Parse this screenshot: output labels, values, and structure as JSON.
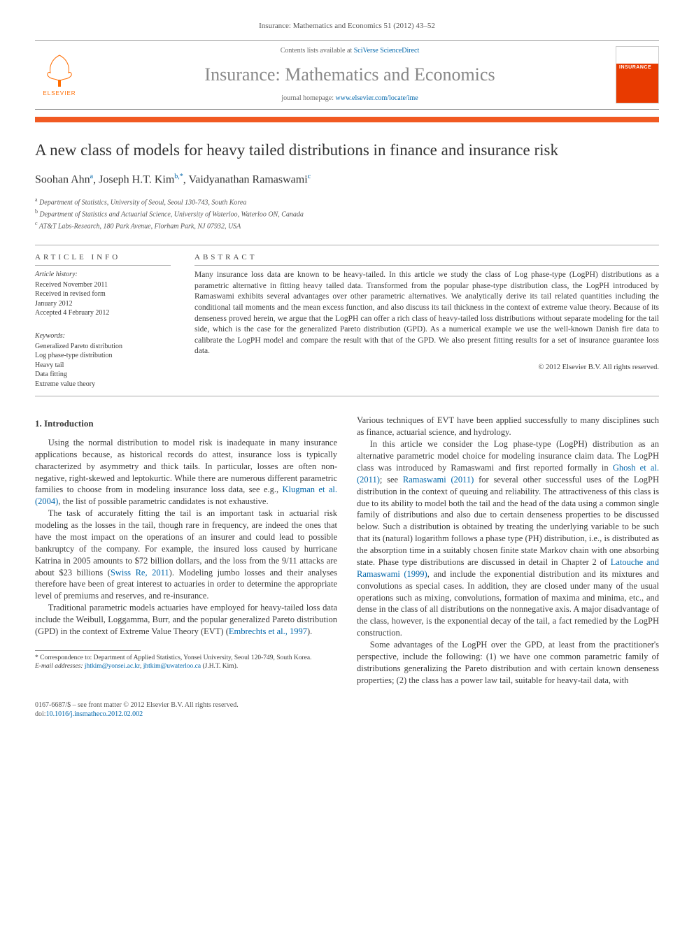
{
  "header": {
    "citation": "Insurance: Mathematics and Economics 51 (2012) 43–52",
    "contents_prefix": "Contents lists available at ",
    "contents_link": "SciVerse ScienceDirect",
    "journal_name": "Insurance: Mathematics and Economics",
    "homepage_prefix": "journal homepage: ",
    "homepage_link": "www.elsevier.com/locate/ime",
    "publisher": "ELSEVIER",
    "cover_label": "INSURANCE"
  },
  "colors": {
    "accent_orange": "#f15a22",
    "elsevier_orange": "#ff6c00",
    "link_blue": "#0066aa",
    "text_gray": "#3a3a3a",
    "rule_gray": "#aaaaaa"
  },
  "title": "A new class of models for heavy tailed distributions in finance and insurance risk",
  "authors_html": "Soohan Ahn<sup>a</sup>, Joseph H.T. Kim<sup>b,*</sup>, Vaidyanathan Ramaswami<sup>c</sup>",
  "affiliations": [
    "a Department of Statistics, University of Seoul, Seoul 130-743, South Korea",
    "b Department of Statistics and Actuarial Science, University of Waterloo, Waterloo ON, Canada",
    "c AT&T Labs-Research, 180 Park Avenue, Florham Park, NJ 07932, USA"
  ],
  "article_info": {
    "heading": "ARTICLE INFO",
    "history_label": "Article history:",
    "history": [
      "Received November 2011",
      "Received in revised form",
      "January 2012",
      "Accepted 4 February 2012"
    ],
    "keywords_label": "Keywords:",
    "keywords": [
      "Generalized Pareto distribution",
      "Log phase-type distribution",
      "Heavy tail",
      "Data fitting",
      "Extreme value theory"
    ]
  },
  "abstract": {
    "heading": "ABSTRACT",
    "text": "Many insurance loss data are known to be heavy-tailed. In this article we study the class of Log phase-type (LogPH) distributions as a parametric alternative in fitting heavy tailed data. Transformed from the popular phase-type distribution class, the LogPH introduced by Ramaswami exhibits several advantages over other parametric alternatives. We analytically derive its tail related quantities including the conditional tail moments and the mean excess function, and also discuss its tail thickness in the context of extreme value theory. Because of its denseness proved herein, we argue that the LogPH can offer a rich class of heavy-tailed loss distributions without separate modeling for the tail side, which is the case for the generalized Pareto distribution (GPD). As a numerical example we use the well-known Danish fire data to calibrate the LogPH model and compare the result with that of the GPD. We also present fitting results for a set of insurance guarantee loss data.",
    "copyright": "© 2012 Elsevier B.V. All rights reserved."
  },
  "sections": {
    "intro_heading": "1. Introduction",
    "p1": "Using the normal distribution to model risk is inadequate in many insurance applications because, as historical records do attest, insurance loss is typically characterized by asymmetry and thick tails. In particular, losses are often non-negative, right-skewed and leptokurtic. While there are numerous different parametric families to choose from in modeling insurance loss data, see e.g., ",
    "p1_ref": "Klugman et al. (2004)",
    "p1_tail": ", the list of possible parametric candidates is not exhaustive.",
    "p2": "The task of accurately fitting the tail is an important task in actuarial risk modeling as the losses in the tail, though rare in frequency, are indeed the ones that have the most impact on the operations of an insurer and could lead to possible bankruptcy of the company. For example, the insured loss caused by hurricane Katrina in 2005 amounts to $72 billion dollars, and the loss from the 9/11 attacks are about $23 billions (",
    "p2_ref": "Swiss Re, 2011",
    "p2_tail": "). Modeling jumbo losses and their analyses therefore have been of great interest to actuaries in order to determine the appropriate level of premiums and reserves, and re-insurance.",
    "p3": "Traditional parametric models actuaries have employed for heavy-tailed loss data include the Weibull, Loggamma, Burr, and the popular generalized Pareto distribution (GPD) in the context of Extreme Value Theory (EVT) (",
    "p3_ref": "Embrechts et al., 1997",
    "p3_tail": ").",
    "p4_head": "Various techniques of EVT have been applied successfully to many disciplines such as finance, actuarial science, and hydrology.",
    "p5": "In this article we consider the Log phase-type (LogPH) distribution as an alternative parametric model choice for modeling insurance claim data. The LogPH class was introduced by Ramaswami and first reported formally in ",
    "p5_ref1": "Ghosh et al. (2011)",
    "p5_mid": "; see ",
    "p5_ref2": "Ramaswami (2011)",
    "p5_tail": " for several other successful uses of the LogPH distribution in the context of queuing and reliability. The attractiveness of this class is due to its ability to model both the tail and the head of the data using a common single family of distributions and also due to certain denseness properties to be discussed below. Such a distribution is obtained by treating the underlying variable to be such that its (natural) logarithm follows a phase type (PH) distribution, i.e., is distributed as the absorption time in a suitably chosen finite state Markov chain with one absorbing state. Phase type distributions are discussed in detail in Chapter 2 of ",
    "p5_ref3": "Latouche and Ramaswami (1999)",
    "p5_tail2": ", and include the exponential distribution and its mixtures and convolutions as special cases. In addition, they are closed under many of the usual operations such as mixing, convolutions, formation of maxima and minima, etc., and dense in the class of all distributions on the nonnegative axis. A major disadvantage of the class, however, is the exponential decay of the tail, a fact remedied by the LogPH construction.",
    "p6": "Some advantages of the LogPH over the GPD, at least from the practitioner's perspective, include the following: (1) we have one common parametric family of distributions generalizing the Pareto distribution and with certain known denseness properties; (2) the class has a power law tail, suitable for heavy-tail data, with"
  },
  "footnotes": {
    "corr_label": "* ",
    "corr_text": "Correspondence to: Department of Applied Statistics, Yonsei University, Seoul 120-749, South Korea.",
    "email_label": "E-mail addresses: ",
    "email1": "jhtkim@yonsei.ac.kr",
    "email2": "jhtkim@uwaterloo.ca",
    "email_tail": " (J.H.T. Kim)."
  },
  "footer": {
    "issn": "0167-6687/$ – see front matter © 2012 Elsevier B.V. All rights reserved.",
    "doi_label": "doi:",
    "doi": "10.1016/j.insmatheco.2012.02.002"
  }
}
